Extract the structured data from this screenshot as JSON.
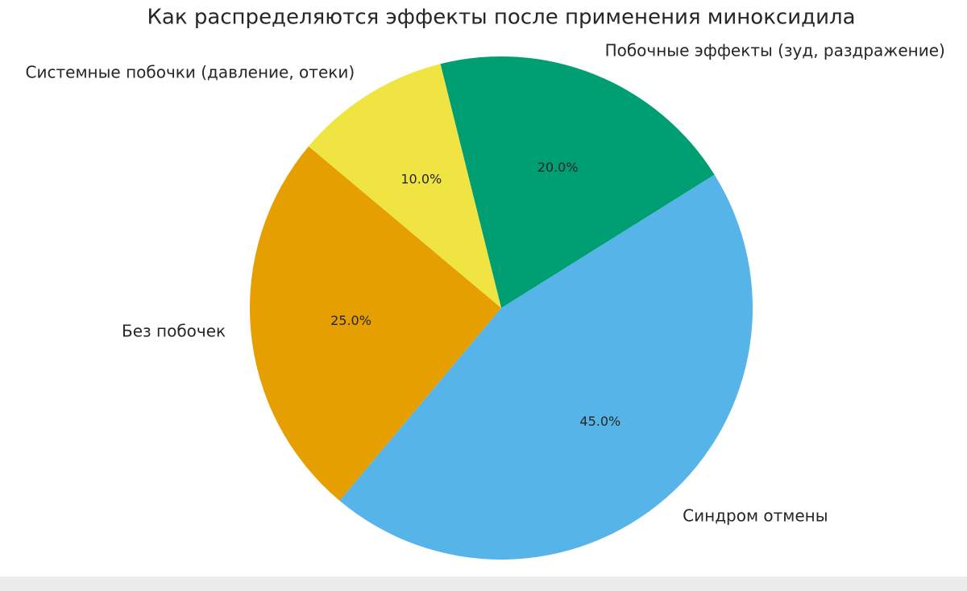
{
  "chart_data": {
    "type": "pie",
    "title": "Как распределяются эффекты после применения миноксидила",
    "categories": [
      "Без побочек",
      "Синдром отмены",
      "Побочные эффекты (зуд, раздражение)",
      "Системные побочки (давление, отеки)"
    ],
    "values": [
      25,
      45,
      20,
      10
    ],
    "value_labels": [
      "25.0%",
      "45.0%",
      "20.0%",
      "10.0%"
    ],
    "colors": [
      "#E69F00",
      "#56B4E9",
      "#009E73",
      "#F0E442"
    ]
  }
}
